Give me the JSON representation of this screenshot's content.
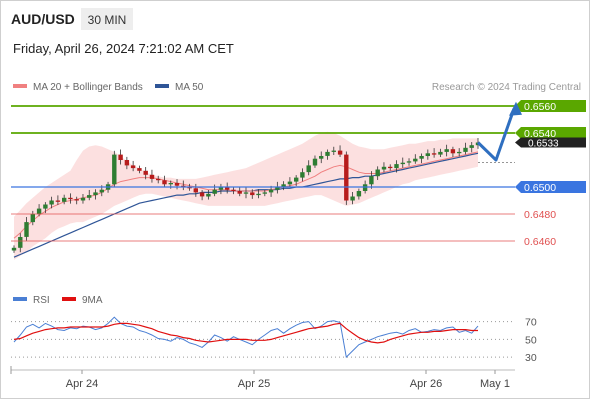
{
  "header": {
    "symbol": "AUD/USD",
    "timeframe": "30 MIN",
    "datetime": "Friday, April 26, 2024 7:21:02 AM CET"
  },
  "legend": {
    "items": [
      {
        "label": "MA 20 + Bollinger Bands",
        "color": "#f08080"
      },
      {
        "label": "MA 50",
        "color": "#2f5597"
      }
    ],
    "credit": "Research © 2024 Trading Central"
  },
  "rsi_legend": {
    "items": [
      {
        "label": "RSI",
        "color": "#4a7fd4"
      },
      {
        "label": "9MA",
        "color": "#e01010"
      }
    ]
  },
  "colors": {
    "green_level": "#5aa700",
    "blue_level": "#3a75e0",
    "red_level": "#e05050",
    "bb_fill": "#fbd5d5",
    "ma50": "#2f5597",
    "ma20": "#f08080",
    "candle_up": "#2e7d32",
    "candle_down": "#b71c1c",
    "forecast_arrow": "#2f6fc0",
    "last_price_tag": "#222222"
  },
  "chart_data": {
    "type": "candlestick",
    "x_ticks": [
      "Apr 24",
      "Apr 25",
      "Apr 26",
      "May 1"
    ],
    "y_range": [
      0.6436,
      0.657
    ],
    "levels": [
      {
        "value": 0.656,
        "label": "0.6560",
        "kind": "resistance",
        "style": "green"
      },
      {
        "value": 0.654,
        "label": "0.6540",
        "kind": "resistance",
        "style": "green"
      },
      {
        "value": 0.65,
        "label": "0.6500",
        "kind": "pivot",
        "style": "blue"
      },
      {
        "value": 0.648,
        "label": "0.6480",
        "kind": "support",
        "style": "red"
      },
      {
        "value": 0.646,
        "label": "0.6460",
        "kind": "support",
        "style": "red"
      }
    ],
    "last_price": {
      "value": 0.6533,
      "label": "0.6533"
    },
    "close_series": [
      0.6455,
      0.6463,
      0.6474,
      0.648,
      0.6484,
      0.6487,
      0.649,
      0.6489,
      0.6492,
      0.6491,
      0.649,
      0.6492,
      0.6494,
      0.6496,
      0.6498,
      0.6502,
      0.6524,
      0.652,
      0.6516,
      0.6514,
      0.6512,
      0.6509,
      0.6506,
      0.6505,
      0.6502,
      0.6503,
      0.6501,
      0.65,
      0.6499,
      0.6496,
      0.6493,
      0.6495,
      0.6498,
      0.65,
      0.6498,
      0.6497,
      0.6495,
      0.6496,
      0.6494,
      0.6495,
      0.6496,
      0.6498,
      0.65,
      0.6502,
      0.6504,
      0.6507,
      0.6511,
      0.6516,
      0.6521,
      0.6523,
      0.6526,
      0.6527,
      0.6524,
      0.649,
      0.6493,
      0.6497,
      0.6502,
      0.6508,
      0.6513,
      0.6515,
      0.6514,
      0.6517,
      0.6518,
      0.6519,
      0.6521,
      0.6523,
      0.6525,
      0.6524,
      0.6526,
      0.6528,
      0.6525,
      0.6526,
      0.6529,
      0.6531,
      0.6533
    ],
    "ma20": [
      0.6462,
      0.6466,
      0.6471,
      0.6475,
      0.6479,
      0.6482,
      0.6485,
      0.6487,
      0.6489,
      0.649,
      0.6491,
      0.6492,
      0.6493,
      0.6494,
      0.6496,
      0.6499,
      0.6502,
      0.6504,
      0.6505,
      0.6506,
      0.6507,
      0.6507,
      0.6507,
      0.6506,
      0.6505,
      0.6504,
      0.6503,
      0.6502,
      0.6501,
      0.65,
      0.6499,
      0.6498,
      0.6498,
      0.6498,
      0.6498,
      0.6497,
      0.6497,
      0.6497,
      0.6497,
      0.6497,
      0.6497,
      0.6498,
      0.6499,
      0.65,
      0.6501,
      0.6502,
      0.6504,
      0.6506,
      0.6508,
      0.6511,
      0.6513,
      0.6515,
      0.6516,
      0.6515,
      0.6513,
      0.6511,
      0.651,
      0.651,
      0.651,
      0.6511,
      0.6512,
      0.6513,
      0.6514,
      0.6515,
      0.6516,
      0.6517,
      0.6518,
      0.6519,
      0.652,
      0.6521,
      0.6522,
      0.6523,
      0.6524,
      0.6525,
      0.6526
    ],
    "bb_upper": [
      0.6478,
      0.6483,
      0.6488,
      0.6492,
      0.6496,
      0.65,
      0.6503,
      0.6506,
      0.6509,
      0.6512,
      0.652,
      0.6527,
      0.653,
      0.6531,
      0.653,
      0.6528,
      0.6526,
      0.6523,
      0.6519,
      0.6516,
      0.6514,
      0.6511,
      0.6509,
      0.6508,
      0.6507,
      0.6507,
      0.6506,
      0.6506,
      0.6506,
      0.6506,
      0.6507,
      0.6508,
      0.6509,
      0.651,
      0.6511,
      0.6512,
      0.6513,
      0.6514,
      0.6516,
      0.6518,
      0.652,
      0.6522,
      0.6524,
      0.6526,
      0.6528,
      0.653,
      0.6532,
      0.6535,
      0.6538,
      0.654,
      0.6541,
      0.654,
      0.6538,
      0.6535,
      0.6532,
      0.653,
      0.6529,
      0.6528,
      0.6528,
      0.6528,
      0.6529,
      0.653,
      0.6531,
      0.6532,
      0.6532,
      0.6533,
      0.6534,
      0.6534,
      0.6535,
      0.6535,
      0.6536,
      0.6536,
      0.6536,
      0.6536,
      0.6536
    ],
    "bb_lower": [
      0.6446,
      0.6449,
      0.6452,
      0.6456,
      0.6459,
      0.6462,
      0.6466,
      0.6469,
      0.6471,
      0.6473,
      0.6474,
      0.6474,
      0.6476,
      0.6478,
      0.648,
      0.6483,
      0.6486,
      0.6488,
      0.649,
      0.6492,
      0.6494,
      0.6495,
      0.6495,
      0.6494,
      0.6493,
      0.6492,
      0.6491,
      0.649,
      0.6489,
      0.6488,
      0.6487,
      0.6486,
      0.6486,
      0.6486,
      0.6486,
      0.6486,
      0.6486,
      0.6486,
      0.6486,
      0.6486,
      0.6486,
      0.6487,
      0.6488,
      0.6489,
      0.649,
      0.6491,
      0.6492,
      0.6493,
      0.6494,
      0.6494,
      0.6492,
      0.649,
      0.6488,
      0.6486,
      0.6487,
      0.6488,
      0.649,
      0.6492,
      0.6494,
      0.6496,
      0.6498,
      0.65,
      0.6502,
      0.6503,
      0.6505,
      0.6506,
      0.6507,
      0.6508,
      0.6509,
      0.651,
      0.6511,
      0.6512,
      0.6513,
      0.6514,
      0.6515
    ],
    "ma50": [
      0.6448,
      0.645,
      0.6452,
      0.6454,
      0.6456,
      0.6458,
      0.646,
      0.6462,
      0.6464,
      0.6466,
      0.6468,
      0.647,
      0.6472,
      0.6474,
      0.6476,
      0.6478,
      0.648,
      0.6482,
      0.6484,
      0.6486,
      0.6488,
      0.6489,
      0.649,
      0.6491,
      0.6492,
      0.6493,
      0.6494,
      0.6494,
      0.6495,
      0.6495,
      0.6496,
      0.6496,
      0.6496,
      0.6497,
      0.6497,
      0.6497,
      0.6497,
      0.6497,
      0.6497,
      0.6498,
      0.6498,
      0.6498,
      0.6498,
      0.6499,
      0.6499,
      0.65,
      0.65,
      0.6501,
      0.6502,
      0.6503,
      0.6504,
      0.6505,
      0.6506,
      0.6506,
      0.6507,
      0.6507,
      0.6508,
      0.6508,
      0.6509,
      0.651,
      0.6511,
      0.6512,
      0.6513,
      0.6514,
      0.6515,
      0.6516,
      0.6517,
      0.6518,
      0.6519,
      0.652,
      0.6521,
      0.6522,
      0.6523,
      0.6524,
      0.6525
    ],
    "forecast_path": [
      {
        "step": 0,
        "value": 0.6533
      },
      {
        "step": 1,
        "value": 0.652
      },
      {
        "step": 2,
        "value": 0.6558
      }
    ],
    "rsi_panel": {
      "levels": [
        70,
        50,
        30
      ],
      "y_range": [
        20,
        82
      ],
      "rsi": [
        47,
        55,
        64,
        67,
        63,
        68,
        65,
        61,
        60,
        63,
        62,
        65,
        64,
        61,
        63,
        68,
        75,
        68,
        65,
        64,
        60,
        58,
        55,
        51,
        50,
        48,
        52,
        50,
        46,
        44,
        41,
        47,
        55,
        52,
        48,
        53,
        50,
        47,
        44,
        50,
        55,
        60,
        62,
        57,
        62,
        66,
        69,
        70,
        62,
        65,
        70,
        71,
        69,
        30,
        37,
        44,
        47,
        50,
        53,
        55,
        57,
        58,
        56,
        60,
        62,
        58,
        59,
        61,
        60,
        63,
        64,
        58,
        60,
        57,
        65
      ],
      "ma9": [
        50,
        51,
        54,
        57,
        59,
        61,
        62,
        63,
        63,
        64,
        64,
        64,
        64,
        64,
        64,
        65,
        67,
        68,
        68,
        67,
        66,
        64,
        62,
        59,
        57,
        55,
        54,
        52,
        51,
        49,
        48,
        47,
        48,
        49,
        50,
        50,
        50,
        50,
        49,
        49,
        49,
        50,
        52,
        54,
        56,
        58,
        60,
        62,
        63,
        64,
        65,
        67,
        68,
        62,
        57,
        52,
        49,
        47,
        46,
        47,
        50,
        52,
        54,
        56,
        57,
        58,
        58,
        59,
        59,
        60,
        61,
        61,
        61,
        60,
        60
      ]
    }
  }
}
